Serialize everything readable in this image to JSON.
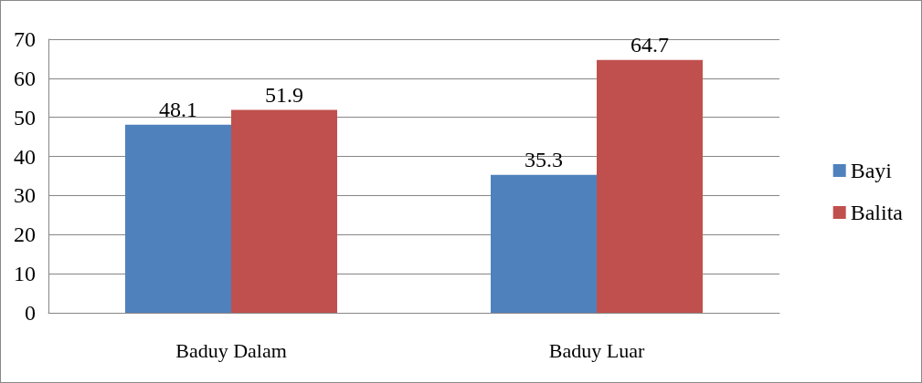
{
  "chart_data": {
    "type": "bar",
    "categories": [
      "Baduy Dalam",
      "Baduy Luar"
    ],
    "series": [
      {
        "name": "Bayi",
        "color": "#4f81bd",
        "values": [
          48.1,
          35.3
        ]
      },
      {
        "name": "Balita",
        "color": "#c0504d",
        "values": [
          51.9,
          64.7
        ]
      }
    ],
    "ylim": [
      0,
      70
    ],
    "yticks": [
      0,
      10,
      20,
      30,
      40,
      50,
      60,
      70
    ],
    "grid": "y",
    "legend": "right",
    "data_labels": true
  }
}
